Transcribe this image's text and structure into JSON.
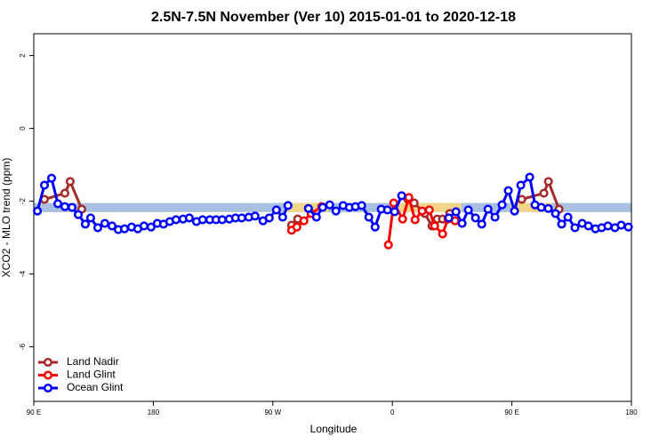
{
  "chart_data": {
    "type": "line",
    "title": "2.5N-7.5N November (Ver 10)   2015-01-01 to 2020-12-18",
    "x_label": "Longitude",
    "y_label": "XCO2 - MLO trend (ppm)",
    "xlim": [
      90,
      540
    ],
    "ylim": [
      -7.5,
      2.6
    ],
    "xticks": [
      {
        "value": 90,
        "label": "90 E"
      },
      180,
      {
        "value": 270,
        "label": "90 W"
      },
      {
        "value": 360,
        "label": "0"
      },
      {
        "value": 450,
        "label": "90 E"
      },
      {
        "value": 540,
        "label": "180"
      }
    ],
    "yticks": [
      2,
      0,
      -2,
      -4,
      -6
    ],
    "band": {
      "lower": -2.3,
      "upper": -2.05,
      "color": "#a9c0e0"
    },
    "highlights": {
      "color": "#f3d58a",
      "ranges": [
        [
          279,
          312
        ],
        [
          359,
          412
        ],
        [
          449,
          480
        ]
      ]
    },
    "legend": "bottom-left",
    "series": [
      {
        "name": "Land Nadir",
        "color": "#a52a2a",
        "x": [
          98.0,
          113.4,
          117.4,
          126.1,
          null,
          284.1,
          288.7,
          null,
          371.7,
          376.4,
          384.4,
          389.8,
          393.8,
          397.8,
          403.2,
          null,
          457.4,
          474.1,
          477.5,
          485.5
        ],
        "values": [
          -1.95,
          -1.78,
          -1.46,
          -2.22,
          null,
          -2.66,
          -2.49,
          null,
          -1.95,
          -2.05,
          -2.34,
          -2.68,
          -2.49,
          -2.49,
          -2.34,
          null,
          -1.95,
          -1.78,
          -1.46,
          -2.22
        ]
      },
      {
        "name": "Land Glint",
        "color": "#ff0000",
        "x": [
          284.1,
          288.1,
          293.4,
          298.8,
          306.8,
          null,
          357.0,
          361.0,
          367.7,
          372.4,
          377.1,
          382.4,
          387.8,
          391.8,
          397.8,
          401.8,
          407.2
        ],
        "values": [
          -2.8,
          -2.71,
          -2.54,
          -2.34,
          -2.15,
          null,
          -3.2,
          -2.05,
          -2.49,
          -1.9,
          -2.51,
          -2.27,
          -2.24,
          -2.68,
          -2.9,
          -2.49,
          -2.54
        ]
      },
      {
        "name": "Ocean Glint",
        "color": "#0000ff",
        "x": [
          92.7,
          98.0,
          103.4,
          108.1,
          113.4,
          118.8,
          123.5,
          128.8,
          132.8,
          138.2,
          143.5,
          148.9,
          153.6,
          158.3,
          163.6,
          168.3,
          173.0,
          178.3,
          183.0,
          187.7,
          192.4,
          197.1,
          202.4,
          207.1,
          212.5,
          217.1,
          222.5,
          227.2,
          231.9,
          237.2,
          241.9,
          246.6,
          251.9,
          256.6,
          262.6,
          267.3,
          272.7,
          277.4,
          281.4,
          null,
          296.8,
          302.8,
          307.5,
          312.8,
          317.5,
          322.9,
          327.6,
          332.2,
          336.9,
          342.3,
          347.0,
          351.6,
          356.3,
          361.7,
          367.0,
          null,
          402.5,
          407.9,
          412.5,
          417.2,
          422.6,
          427.3,
          432.0,
          437.3,
          442.6,
          447.3,
          452.0,
          456.7,
          463.4,
          467.4,
          472.1,
          477.4,
          482.8,
          487.5,
          492.2,
          497.5,
          502.9,
          507.6,
          512.9,
          517.6,
          522.3,
          527.6,
          532.3,
          537.7
        ],
        "values": [
          -2.27,
          -1.56,
          -1.37,
          -2.07,
          -2.15,
          -2.17,
          -2.37,
          -2.63,
          -2.46,
          -2.73,
          -2.61,
          -2.68,
          -2.78,
          -2.76,
          -2.71,
          -2.76,
          -2.68,
          -2.71,
          -2.61,
          -2.63,
          -2.56,
          -2.51,
          -2.49,
          -2.46,
          -2.56,
          -2.51,
          -2.51,
          -2.51,
          -2.51,
          -2.49,
          -2.46,
          -2.46,
          -2.44,
          -2.41,
          -2.54,
          -2.46,
          -2.24,
          -2.44,
          -2.12,
          null,
          -2.2,
          -2.44,
          -2.17,
          -2.1,
          -2.27,
          -2.12,
          -2.17,
          -2.15,
          -2.12,
          -2.44,
          -2.71,
          -2.22,
          -2.24,
          -2.29,
          -1.85,
          null,
          -2.46,
          -2.29,
          -2.61,
          -2.24,
          -2.46,
          -2.63,
          -2.22,
          -2.44,
          -2.1,
          -1.71,
          -2.27,
          -1.56,
          -1.34,
          -2.1,
          -2.17,
          -2.2,
          -2.34,
          -2.63,
          -2.44,
          -2.73,
          -2.61,
          -2.68,
          -2.76,
          -2.73,
          -2.68,
          -2.73,
          -2.66,
          -2.71
        ]
      }
    ]
  }
}
